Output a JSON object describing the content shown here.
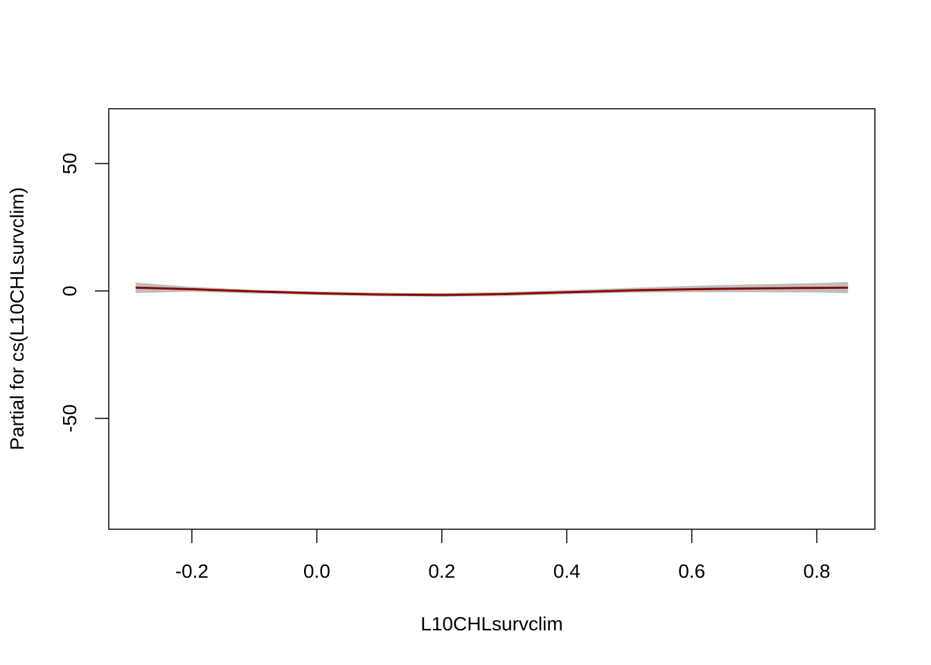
{
  "chart_data": {
    "type": "line",
    "title": "",
    "xlabel": "L10CHLsurvclim",
    "ylabel": "Partial for cs(L10CHLsurvclim)",
    "xlim": [
      -0.333,
      0.893
    ],
    "ylim": [
      -93.5,
      71.5
    ],
    "xticks": [
      -0.2,
      0.0,
      0.2,
      0.4,
      0.6,
      0.8
    ],
    "xtick_labels": [
      "-0.2",
      "0.0",
      "0.2",
      "0.4",
      "0.6",
      "0.8"
    ],
    "yticks": [
      -50,
      0,
      50
    ],
    "ytick_labels": [
      "-50",
      "0",
      "50"
    ],
    "grid": false,
    "legend": "none",
    "series": [
      {
        "color": "#8B0000",
        "band_color": "#BEBEBE",
        "points": [
          {
            "x": -0.29,
            "y": 1.3,
            "lo": -0.8,
            "hi": 3.3
          },
          {
            "x": -0.2,
            "y": 0.7,
            "lo": -0.3,
            "hi": 1.6
          },
          {
            "x": -0.1,
            "y": -0.2,
            "lo": -1.0,
            "hi": 0.5
          },
          {
            "x": 0.0,
            "y": -0.9,
            "lo": -1.6,
            "hi": -0.2
          },
          {
            "x": 0.1,
            "y": -1.4,
            "lo": -2.1,
            "hi": -0.7
          },
          {
            "x": 0.2,
            "y": -1.6,
            "lo": -2.3,
            "hi": -0.8
          },
          {
            "x": 0.3,
            "y": -1.2,
            "lo": -2.0,
            "hi": -0.4
          },
          {
            "x": 0.4,
            "y": -0.5,
            "lo": -1.3,
            "hi": 0.3
          },
          {
            "x": 0.5,
            "y": 0.2,
            "lo": -0.7,
            "hi": 1.2
          },
          {
            "x": 0.6,
            "y": 0.7,
            "lo": -0.5,
            "hi": 2.0
          },
          {
            "x": 0.7,
            "y": 1.0,
            "lo": -0.5,
            "hi": 2.6
          },
          {
            "x": 0.8,
            "y": 1.2,
            "lo": -0.6,
            "hi": 3.1
          },
          {
            "x": 0.85,
            "y": 1.3,
            "lo": -0.9,
            "hi": 3.5
          }
        ]
      }
    ]
  }
}
